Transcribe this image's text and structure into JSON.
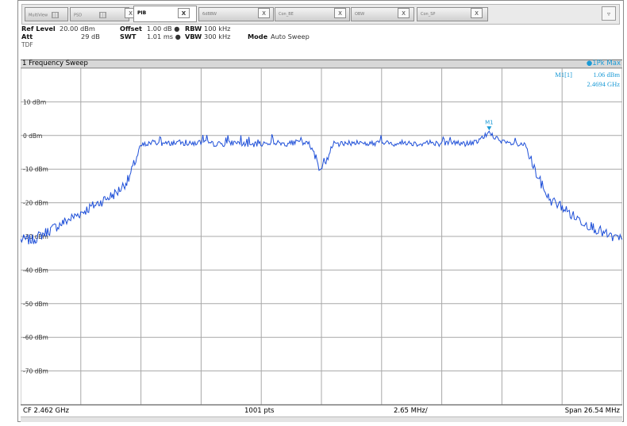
{
  "tabs": [
    {
      "label": "MultiView",
      "close": "",
      "active": false
    },
    {
      "label": "PSD",
      "close": "X",
      "active": false
    },
    {
      "label": "PIB",
      "close": "X",
      "active": true
    },
    {
      "label": "6dBBW",
      "close": "X",
      "active": false
    },
    {
      "label": "Con_BE",
      "close": "X",
      "active": false
    },
    {
      "label": "OBW",
      "close": "X",
      "active": false
    },
    {
      "label": "Con_SP",
      "close": "X",
      "active": false
    }
  ],
  "dropdown_glyph": "▿",
  "settings": {
    "ref_level_label": "Ref Level",
    "ref_level_value": "20.00 dBm",
    "offset_label": "Offset",
    "offset_value": "1.00 dB ●",
    "rbw_label": "RBW",
    "rbw_value": "100 kHz",
    "att_label": "Att",
    "att_value": "29 dB",
    "swt_label": "SWT",
    "swt_value": "1.01 ms ●",
    "vbw_label": "VBW",
    "vbw_value": "300 kHz",
    "mode_label": "Mode",
    "mode_value": "Auto Sweep",
    "tdf_label": "TDF"
  },
  "window_title": "1 Frequency Sweep",
  "trace_label": "1Pk Max",
  "marker": {
    "label": "M1[1]",
    "level": "1.06 dBm",
    "freq": "2.4694 GHz",
    "tag": "M1"
  },
  "footer": {
    "center_freq": "CF 2.462 GHz",
    "points": "1001 pts",
    "per_div": "2.65 MHz/",
    "span": "Span 26.54 MHz"
  },
  "colors": {
    "trace": "#1e4fd8",
    "marker": "#1a9ad6",
    "grid": "#a8a8a8"
  },
  "chart_data": {
    "type": "line",
    "title": "1 Frequency Sweep",
    "xlabel": "",
    "ylabel": "",
    "x_unit": "GHz",
    "xlim": [
      2.44873,
      2.47527
    ],
    "ylim": [
      -80,
      20
    ],
    "y_tick_labels": [
      "10 dBm",
      "0 dBm",
      "-10 dBm",
      "-20 dBm",
      "-30 dBm",
      "-40 dBm",
      "-50 dBm",
      "-60 dBm",
      "-70 dBm"
    ],
    "y_ticks": [
      10,
      0,
      -10,
      -20,
      -30,
      -40,
      -50,
      -60,
      -70
    ],
    "grid": true,
    "series": [
      {
        "name": "1Pk Max",
        "x": [
          2.44873,
          2.44926,
          2.44979,
          2.45032,
          2.45085,
          2.45138,
          2.45191,
          2.45244,
          2.45297,
          2.4535,
          2.45403,
          2.45456,
          2.45509,
          2.45562,
          2.45615,
          2.45668,
          2.45721,
          2.45774,
          2.45827,
          2.4588,
          2.45933,
          2.45986,
          2.46039,
          2.46092,
          2.46145,
          2.46198,
          2.46251,
          2.46304,
          2.46357,
          2.4641,
          2.46463,
          2.46516,
          2.46569,
          2.46622,
          2.46675,
          2.46728,
          2.46781,
          2.46834,
          2.46887,
          2.4694,
          2.46993,
          2.47046,
          2.47099,
          2.47152,
          2.47205,
          2.47258,
          2.47311,
          2.47364,
          2.47417,
          2.4747,
          2.47527
        ],
        "values": [
          -31,
          -31,
          -29,
          -27,
          -25,
          -23,
          -21,
          -19,
          -17,
          -13,
          -3,
          -2,
          -2.5,
          -2,
          -2.5,
          -2,
          -2.5,
          -2.5,
          -2,
          -3,
          -2.5,
          -2,
          -2.5,
          -2,
          -2.5,
          -10,
          -2.5,
          -2.5,
          -2,
          -2.5,
          -2,
          -2.5,
          -2,
          -2.5,
          -2,
          -2.5,
          -2,
          -2.5,
          -2,
          1,
          -2,
          -2.5,
          -3,
          -12,
          -19,
          -21,
          -24,
          -26,
          -28,
          -30,
          -31
        ]
      }
    ],
    "markers": [
      {
        "name": "M1",
        "x": 2.4694,
        "y": 1.06
      }
    ]
  }
}
